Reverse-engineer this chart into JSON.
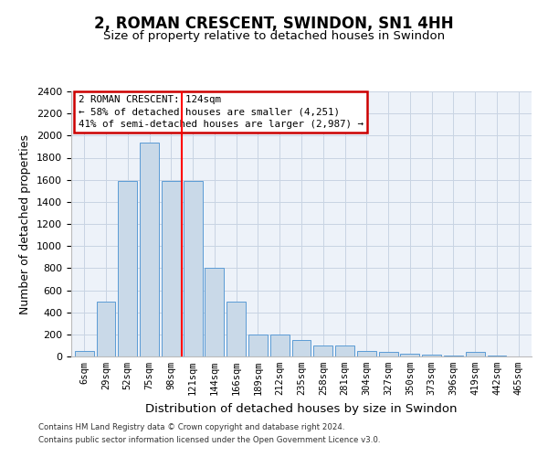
{
  "title": "2, ROMAN CRESCENT, SWINDON, SN1 4HH",
  "subtitle": "Size of property relative to detached houses in Swindon",
  "xlabel": "Distribution of detached houses by size in Swindon",
  "ylabel": "Number of detached properties",
  "categories": [
    "6sqm",
    "29sqm",
    "52sqm",
    "75sqm",
    "98sqm",
    "121sqm",
    "144sqm",
    "166sqm",
    "189sqm",
    "212sqm",
    "235sqm",
    "258sqm",
    "281sqm",
    "304sqm",
    "327sqm",
    "350sqm",
    "373sqm",
    "396sqm",
    "419sqm",
    "442sqm",
    "465sqm"
  ],
  "values": [
    50,
    500,
    1590,
    1940,
    1590,
    1590,
    800,
    500,
    200,
    200,
    145,
    100,
    100,
    50,
    45,
    25,
    15,
    10,
    40,
    5,
    4
  ],
  "bar_color": "#c9d9e8",
  "bar_edge_color": "#5b9bd5",
  "red_line_x": 4.5,
  "annotation_line1": "2 ROMAN CRESCENT: 124sqm",
  "annotation_line2": "← 58% of detached houses are smaller (4,251)",
  "annotation_line3": "41% of semi-detached houses are larger (2,987) →",
  "annotation_box_color": "#ffffff",
  "annotation_box_edge": "#cc0000",
  "ylim": [
    0,
    2400
  ],
  "yticks": [
    0,
    200,
    400,
    600,
    800,
    1000,
    1200,
    1400,
    1600,
    1800,
    2000,
    2200,
    2400
  ],
  "footer1": "Contains HM Land Registry data © Crown copyright and database right 2024.",
  "footer2": "Contains public sector information licensed under the Open Government Licence v3.0.",
  "bg_color": "#ffffff",
  "plot_bg_color": "#edf2f9",
  "grid_color": "#c8d4e3"
}
